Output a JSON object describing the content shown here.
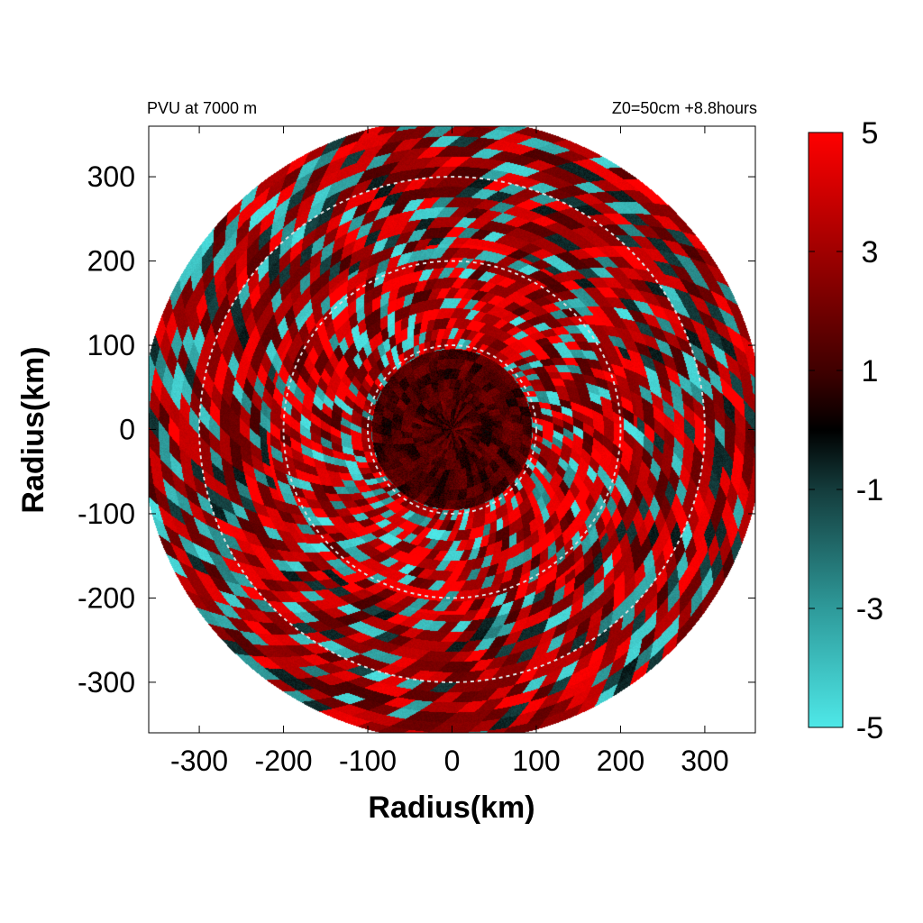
{
  "chart_data": {
    "type": "heatmap",
    "title_left": "PVU at  7000 m",
    "title_right": "Z0=50cm  +8.8hours",
    "xlabel": "Radius(km)",
    "ylabel": "Radius(km)",
    "xlim": [
      -360,
      360
    ],
    "ylim": [
      -360,
      360
    ],
    "x_ticks": [
      -300,
      -200,
      -100,
      0,
      100,
      200,
      300
    ],
    "y_ticks": [
      300,
      200,
      100,
      0,
      -100,
      -200,
      -300
    ],
    "x_tick_labels": [
      "-300",
      "-200",
      "-100",
      "0",
      "100",
      "200",
      "300"
    ],
    "y_tick_labels": [
      "300",
      "200",
      "100",
      "0",
      "-100",
      "-200",
      "-300"
    ],
    "reference_circles_km": [
      100,
      200,
      300
    ],
    "domain_radius_km": 370,
    "colorbar": {
      "range": [
        -5,
        5
      ],
      "tick_values": [
        5,
        3,
        1,
        -1,
        -3,
        -5
      ],
      "tick_labels": [
        "5",
        "3",
        "1",
        "-1",
        "-3",
        "-5"
      ],
      "colors": [
        {
          "value": -5,
          "color": "#4ee8e8"
        },
        {
          "value": -3,
          "color": "#2e9a9a"
        },
        {
          "value": -1,
          "color": "#143c3c"
        },
        {
          "value": 0,
          "color": "#000000"
        },
        {
          "value": 1,
          "color": "#400000"
        },
        {
          "value": 3,
          "color": "#a00000"
        },
        {
          "value": 5,
          "color": "#ff0000"
        }
      ]
    },
    "grid": false,
    "legend": "right (colorbar)"
  }
}
